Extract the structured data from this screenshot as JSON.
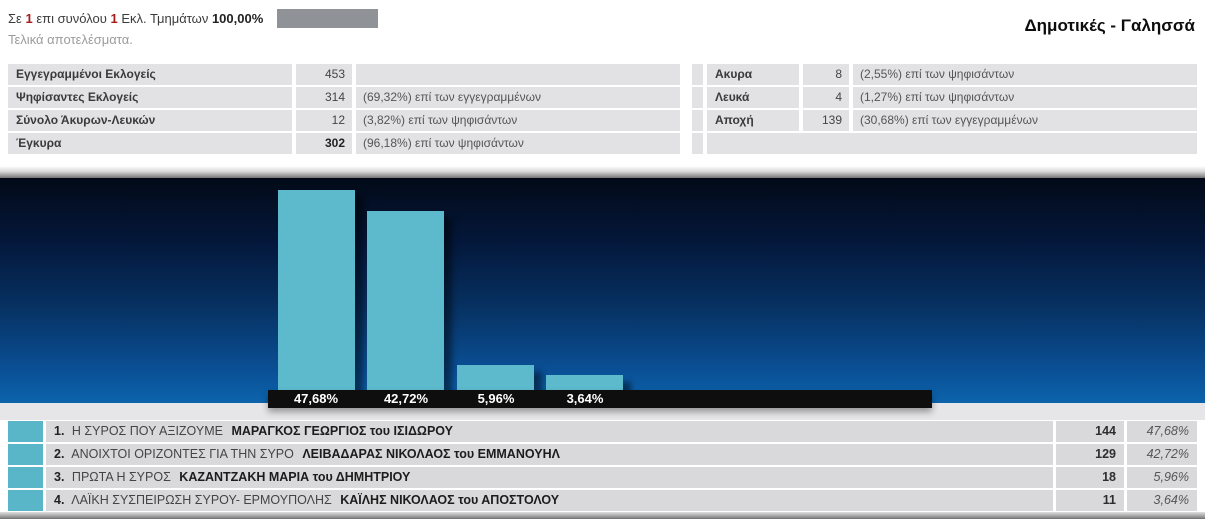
{
  "header": {
    "progress_prefix": "Σε",
    "progress_done": "1",
    "progress_mid": "επι συνόλου",
    "progress_total": "1",
    "progress_suffix": "Εκλ. Τμημάτων",
    "progress_percent": "100,00%",
    "subtitle": "Τελικά αποτελέσματα.",
    "title": "Δημοτικές - Γαλησσά"
  },
  "stats_left": {
    "rows": [
      {
        "label": "Εγγεγραμμένοι Εκλογείς",
        "value": "453",
        "detail": ""
      },
      {
        "label": "Ψηφίσαντες Εκλογείς",
        "value": "314",
        "detail": "(69,32%) επί των εγγεγραμμένων"
      },
      {
        "label": "Σύνολο Άκυρων-Λευκών",
        "value": "12",
        "detail": "(3,82%) επί των ψηφισάντων"
      },
      {
        "label": "Έγκυρα",
        "value": "302",
        "detail": "(96,18%) επί των ψηφισάντων"
      }
    ]
  },
  "stats_right": {
    "rows": [
      {
        "label": "Ακυρα",
        "value": "8",
        "detail": "(2,55%) επί των ψηφισάντων"
      },
      {
        "label": "Λευκά",
        "value": "4",
        "detail": "(1,27%) επί των ψηφισάντων"
      },
      {
        "label": "Αποχή",
        "value": "139",
        "detail": "(30,68%) επί των εγγεγραμμένων"
      },
      {
        "label": "",
        "value": "",
        "detail": ""
      }
    ]
  },
  "chart_data": {
    "type": "bar",
    "title": "",
    "xlabel": "",
    "ylabel": "",
    "categories": [
      "Η ΣΥΡΟΣ ΠΟΥ ΑΞΙΖΟΥΜΕ",
      "ΑΝΟΙΧΤΟΙ ΟΡΙΖΟΝΤΕΣ ΓΙΑ ΤΗΝ ΣΥΡΟ",
      "ΠΡΩΤΑ Η ΣΥΡΟΣ",
      "ΛΑΪΚΗ ΣΥΣΠΕΙΡΩΣΗ ΣΥΡΟΥ- ΕΡΜΟΥΠΟΛΗΣ"
    ],
    "values": [
      47.68,
      42.72,
      5.96,
      3.64
    ],
    "votes": [
      144,
      129,
      18,
      11
    ],
    "bar_labels": [
      "47,68%",
      "42,72%",
      "5,96%",
      "3,64%"
    ],
    "ylim": [
      0,
      50
    ],
    "grid": false,
    "legend": "none",
    "bar_color": "#5dbacd",
    "background_top": "#020a17",
    "background_bottom": "#0c64ab",
    "label_strip_color": "#0e0e0e"
  },
  "results": {
    "rows": [
      {
        "rank": "1.",
        "party": "Η ΣΥΡΟΣ ΠΟΥ ΑΞΙΖΟΥΜΕ",
        "candidate": "ΜΑΡΑΓΚΟΣ ΓΕΩΡΓΙΟΣ του ΙΣΙΔΩΡΟΥ",
        "votes": "144",
        "percent": "47,68%"
      },
      {
        "rank": "2.",
        "party": "ΑΝΟΙΧΤΟΙ ΟΡΙΖΟΝΤΕΣ ΓΙΑ ΤΗΝ ΣΥΡΟ",
        "candidate": "ΛΕΙΒΑΔΑΡΑΣ ΝΙΚΟΛΑΟΣ του ΕΜΜΑΝΟΥΗΛ",
        "votes": "129",
        "percent": "42,72%"
      },
      {
        "rank": "3.",
        "party": "ΠΡΩΤΑ Η ΣΥΡΟΣ",
        "candidate": "ΚΑΖΑΝΤΖΑΚΗ ΜΑΡΙΑ του ΔΗΜΗΤΡΙΟΥ",
        "votes": "18",
        "percent": "5,96%"
      },
      {
        "rank": "4.",
        "party": "ΛΑΪΚΗ ΣΥΣΠΕΙΡΩΣΗ ΣΥΡΟΥ- ΕΡΜΟΥΠΟΛΗΣ",
        "candidate": "ΚΑΪΛΗΣ ΝΙΚΟΛΑΟΣ του ΑΠΟΣΤΟΛΟΥ",
        "votes": "11",
        "percent": "3,64%"
      }
    ]
  },
  "colors": {
    "party_swatch": "#58b6c8",
    "progress_bar": "#8f9297",
    "red_number": "#a61c1c"
  }
}
